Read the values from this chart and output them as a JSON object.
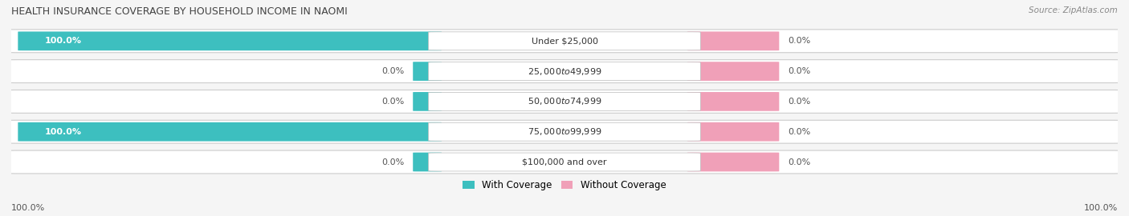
{
  "title": "HEALTH INSURANCE COVERAGE BY HOUSEHOLD INCOME IN NAOMI",
  "source": "Source: ZipAtlas.com",
  "categories": [
    "Under $25,000",
    "$25,000 to $49,999",
    "$50,000 to $74,999",
    "$75,000 to $99,999",
    "$100,000 and over"
  ],
  "with_coverage": [
    100.0,
    0.0,
    0.0,
    100.0,
    0.0
  ],
  "without_coverage": [
    0.0,
    0.0,
    0.0,
    0.0,
    0.0
  ],
  "teal_color": "#3dbfbf",
  "pink_color": "#f0a0b8",
  "row_bg_color": "#f0f0f0",
  "title_color": "#444444",
  "bar_height": 0.62,
  "legend_teal": "With Coverage",
  "legend_pink": "Without Coverage",
  "fig_bg": "#f5f5f5"
}
